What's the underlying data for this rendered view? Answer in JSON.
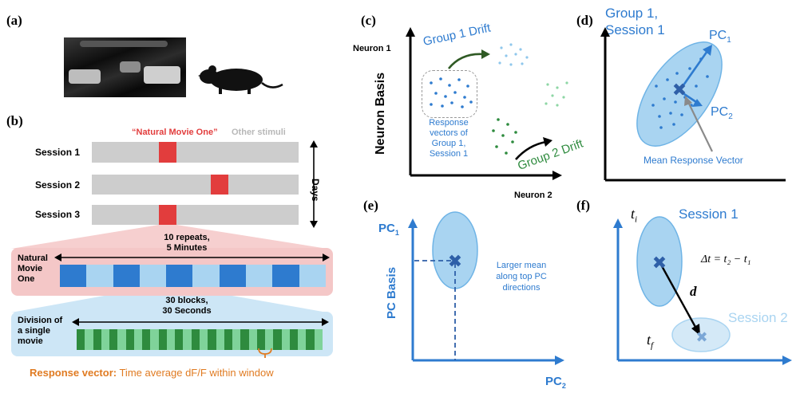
{
  "panels": {
    "a": "(a)",
    "b": "(b)",
    "c": "(c)",
    "d": "(d)",
    "e": "(e)",
    "f": "(f)"
  },
  "panel_b": {
    "natural_movie_label": "“Natural Movie One”",
    "other_stimuli_label": "Other stimuli",
    "sessions": [
      "Session 1",
      "Session 2",
      "Session 3"
    ],
    "days_label": "Days",
    "repeats_line1": "10 repeats,",
    "repeats_line2": "5 Minutes",
    "natural_movie_one": [
      "Natural",
      "Movie",
      "One"
    ],
    "blocks_line1": "30 blocks,",
    "blocks_line2": "30 Seconds",
    "division_label": [
      "Division of",
      "a single",
      "movie"
    ],
    "response_vector_bold": "Response vector:",
    "response_vector_text": " Time average dF/F within window"
  },
  "panel_c": {
    "y_top_label": "Neuron 1",
    "y_axis_label": "Neuron Basis",
    "x_axis_label": "Neuron 2",
    "group1_drift": "Group 1 Drift",
    "group2_drift": "Group 2 Drift",
    "response_note": [
      "Response",
      "vectors of",
      "Group 1,",
      "Session 1"
    ]
  },
  "panel_d": {
    "title_line1": "Group 1,",
    "title_line2": "Session 1",
    "pc1": "PC",
    "pc1_sub": "1",
    "pc2": "PC",
    "pc2_sub": "2",
    "mean_label": "Mean Response Vector"
  },
  "panel_e": {
    "y_top_label": "PC",
    "y_top_sub": "1",
    "y_axis_label": "PC Basis",
    "x_label": "PC",
    "x_sub": "2",
    "note": [
      "Larger mean",
      "along top PC",
      "directions"
    ]
  },
  "panel_f": {
    "ti": "t",
    "ti_sub": "i",
    "tf": "t",
    "tf_sub": "f",
    "session1": "Session 1",
    "session2": "Session 2",
    "d_label": "d",
    "equation": "Δt = t₂ − t₁"
  },
  "colors": {
    "blue": "#2e7bcf",
    "light_blue": "#a9d4f1",
    "red": "#e23d3d",
    "green": "#2e8b3e",
    "orange": "#e07b22"
  }
}
